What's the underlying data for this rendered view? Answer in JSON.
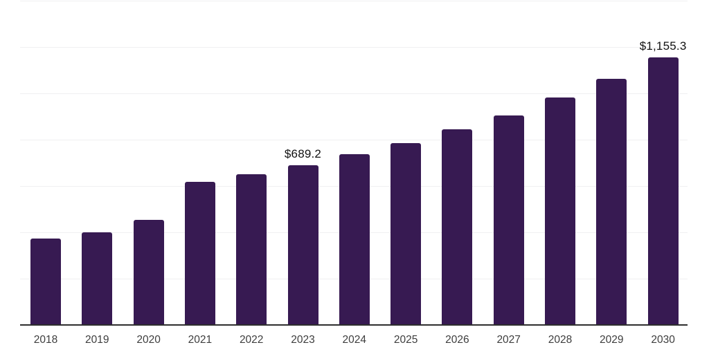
{
  "chart_data": {
    "type": "bar",
    "title": "",
    "xlabel": "",
    "ylabel": "",
    "categories": [
      "2018",
      "2019",
      "2020",
      "2021",
      "2022",
      "2023",
      "2024",
      "2025",
      "2026",
      "2027",
      "2028",
      "2029",
      "2030"
    ],
    "values": [
      374.0,
      401.0,
      454.0,
      618.5,
      651.5,
      689.2,
      736.5,
      786.5,
      843.5,
      906.0,
      981.0,
      1063.0,
      1155.3
    ],
    "point_labels": [
      "",
      "",
      "",
      "",
      "",
      "$689.2",
      "",
      "",
      "",
      "",
      "",
      "",
      "$1,155.3"
    ],
    "ylim": [
      0,
      1400
    ],
    "grid_step": 200,
    "grid_visible": true,
    "y_tick_labels_visible": false,
    "legend": "none",
    "colors": {
      "bar": "#371a52",
      "gridline": "#f0f0f1",
      "axis_line": "#2e2e2e",
      "tick_label": "#3d3d3d",
      "value_label": "#111111",
      "background": "#ffffff"
    }
  }
}
